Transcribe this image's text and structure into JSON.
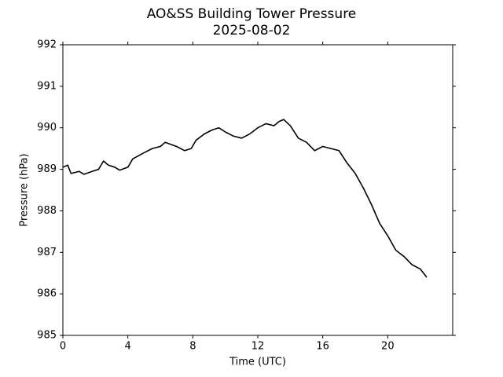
{
  "chart_data": {
    "type": "line",
    "title": "AO&SS Building Tower Pressure",
    "subtitle": "2025-08-02",
    "x_label": "Time (UTC)",
    "y_label": "Pressure (hPa)",
    "x": [
      0,
      0.3,
      0.5,
      1,
      1.3,
      1.8,
      2.2,
      2.5,
      2.8,
      3.2,
      3.5,
      4,
      4.3,
      5,
      5.5,
      6,
      6.3,
      7,
      7.5,
      7.9,
      8.2,
      8.7,
      9.2,
      9.6,
      10,
      10.5,
      11,
      11.5,
      12,
      12.5,
      13,
      13.3,
      13.6,
      14,
      14.5,
      15,
      15.5,
      16,
      16.5,
      17,
      17.5,
      18,
      18.5,
      19,
      19.5,
      20,
      20.5,
      21,
      21.5,
      22,
      22.4
    ],
    "series": [
      {
        "name": "Pressure",
        "color": "#000000",
        "values": [
          989.05,
          989.1,
          988.9,
          988.95,
          988.88,
          988.95,
          989.0,
          989.2,
          989.1,
          989.05,
          988.98,
          989.05,
          989.25,
          989.4,
          989.5,
          989.55,
          989.65,
          989.55,
          989.45,
          989.5,
          989.7,
          989.85,
          989.95,
          990.0,
          989.9,
          989.8,
          989.75,
          989.85,
          990.0,
          990.1,
          990.05,
          990.15,
          990.2,
          990.05,
          989.75,
          989.65,
          989.45,
          989.55,
          989.5,
          989.45,
          989.15,
          988.9,
          988.55,
          988.15,
          987.7,
          987.4,
          987.05,
          986.9,
          986.7,
          986.6,
          986.4
        ]
      }
    ],
    "xlim": [
      0,
      24
    ],
    "xticks": [
      0,
      4,
      8,
      12,
      16,
      20
    ],
    "ylim": [
      985,
      992
    ],
    "yticks": [
      985,
      986,
      987,
      988,
      989,
      990,
      991,
      992
    ],
    "grid": false
  }
}
